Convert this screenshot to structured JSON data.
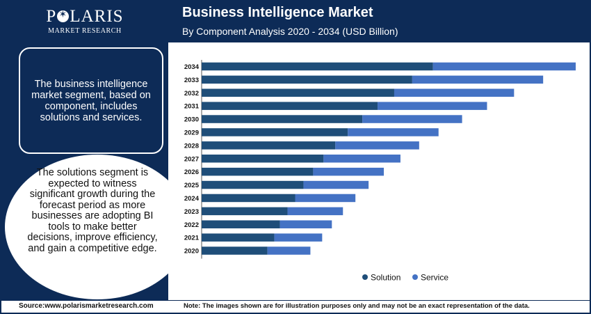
{
  "logo": {
    "pre": "P",
    "post": "LARIS",
    "sub": "MARKET RESEARCH"
  },
  "header": {
    "title": "Business Intelligence Market",
    "subtitle": "By Component Analysis 2020 - 2034 (USD Billion)"
  },
  "sidebar": {
    "info_text": "The business intelligence market segment, based on component, includes solutions and services.",
    "circle_text": "The solutions segment is expected to witness significant growth during the forecast period as more businesses are adopting BI tools to make better decisions, improve efficiency, and gain a competitive edge."
  },
  "footer": {
    "source": "Source:www.polarismarketresearch.com",
    "note": "Note: The images shown are for illustration purposes only and may not be an exact representation of the data."
  },
  "colors": {
    "navy": "#0d2b57",
    "solution": "#1f4e79",
    "service": "#4472c4"
  },
  "chart_data": {
    "type": "bar",
    "orientation": "horizontal",
    "stacked": true,
    "categories": [
      "2034",
      "2033",
      "2032",
      "2031",
      "2030",
      "2029",
      "2028",
      "2027",
      "2026",
      "2025",
      "2024",
      "2023",
      "2022",
      "2021",
      "2020"
    ],
    "series": [
      {
        "name": "Solution",
        "color": "#1f4e79",
        "values": [
          33.4,
          30.4,
          27.8,
          25.4,
          23.2,
          21.1,
          19.3,
          17.6,
          16.1,
          14.7,
          13.5,
          12.4,
          11.3,
          10.5,
          9.5
        ]
      },
      {
        "name": "Service",
        "color": "#4472c4",
        "values": [
          20.6,
          18.9,
          17.3,
          15.8,
          14.4,
          13.1,
          12.1,
          11.1,
          10.2,
          9.4,
          8.7,
          8.0,
          7.5,
          6.9,
          6.2
        ]
      }
    ],
    "xaxis_visible": false,
    "legend_position": "bottom",
    "grid": false
  }
}
